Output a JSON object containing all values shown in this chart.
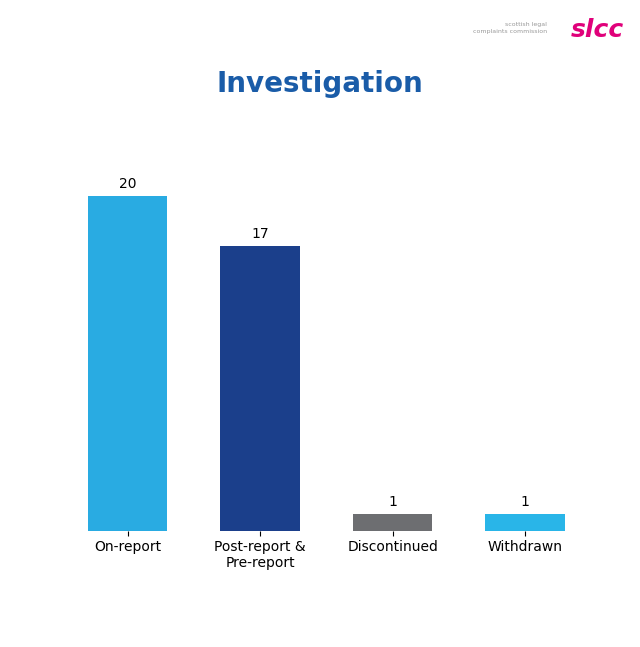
{
  "title": "Investigation",
  "title_color": "#1A5CA8",
  "title_fontsize": 20,
  "title_fontweight": "bold",
  "categories": [
    "On-report",
    "Post-report &\nPre-report",
    "Discontinued",
    "Withdrawn"
  ],
  "values": [
    20,
    17,
    1,
    1
  ],
  "bar_colors": [
    "#29ABE2",
    "#1B3F8B",
    "#6D6E71",
    "#29B5E8"
  ],
  "bar_width": 0.6,
  "ylim": [
    0,
    24
  ],
  "background_color": "#ffffff",
  "label_fontsize": 10,
  "tick_fontsize": 10,
  "value_label_fontsize": 10,
  "slcc_text": "slcc",
  "slcc_small_text": "scottish legal\ncomplaints commission",
  "slcc_color": "#E0007A",
  "slcc_small_color": "#999999"
}
